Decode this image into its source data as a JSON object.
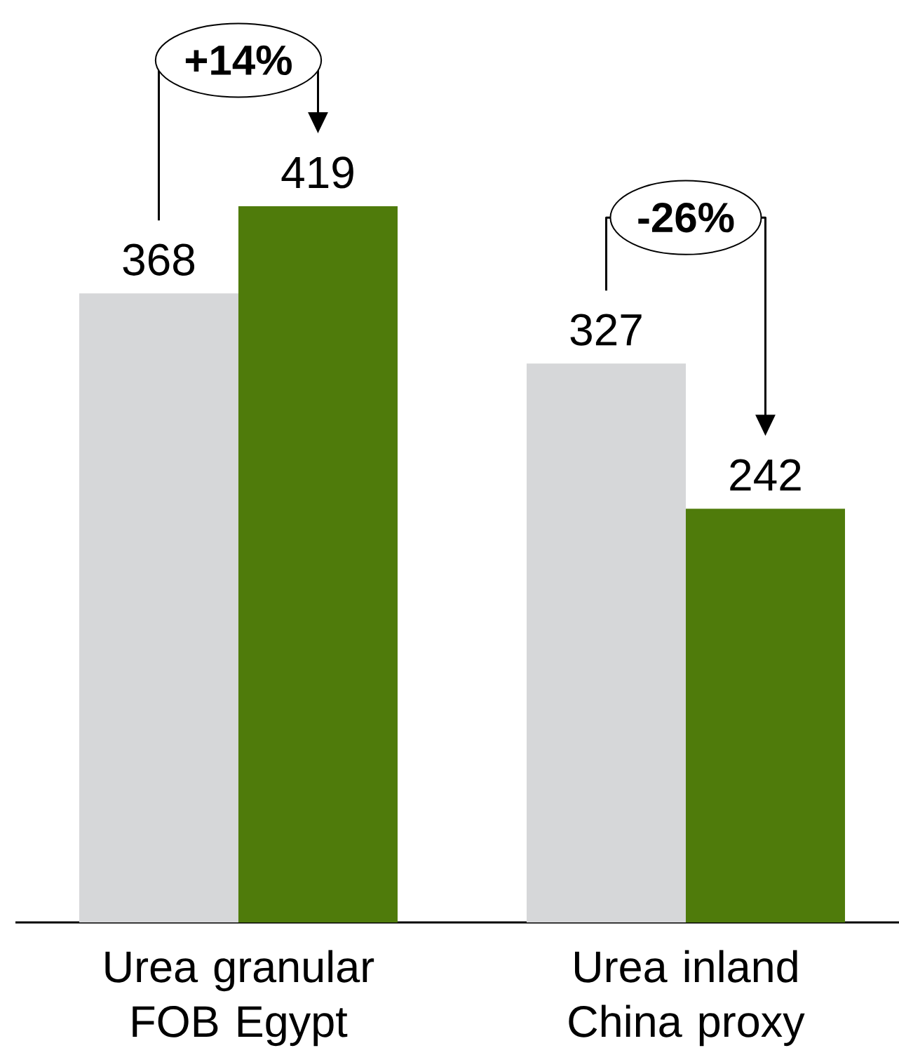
{
  "chart_data": {
    "type": "bar",
    "categories": [
      "Urea granular FOB Egypt",
      "Urea inland China proxy"
    ],
    "series": [
      {
        "color": "#d6d7d9",
        "values": [
          368,
          327
        ]
      },
      {
        "color": "#4f7b0b",
        "values": [
          419,
          242
        ]
      }
    ],
    "data_labels": true,
    "annotations": [
      "+14%",
      "-26%"
    ]
  }
}
